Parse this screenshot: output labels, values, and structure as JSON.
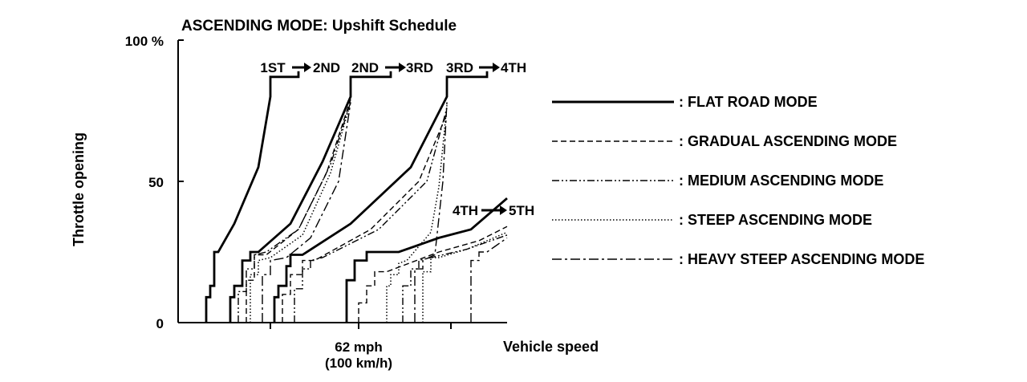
{
  "chart_data": {
    "type": "line",
    "title": "ASCENDING MODE: Upshift Schedule",
    "xlabel": "Vehicle speed",
    "ylabel": "Throttle opening",
    "x_unit": "mph",
    "y_unit": "%",
    "xlim": [
      0,
      82
    ],
    "ylim": [
      0,
      100
    ],
    "grid": false,
    "legend_position": "right",
    "y_tick_labels": [
      {
        "value": 100,
        "label": "100 %"
      },
      {
        "value": 50,
        "label": "50"
      },
      {
        "value": 0,
        "label": "0"
      }
    ],
    "x_tick_values": [
      23,
      45,
      68
    ],
    "x_tick_labels": [
      {
        "value": 45,
        "line1": "62 mph",
        "line2": "(100 km/h)"
      }
    ],
    "shift_labels": [
      {
        "from": "1ST",
        "to": "2ND"
      },
      {
        "from": "2ND",
        "to": "3RD"
      },
      {
        "from": "3RD",
        "to": "4TH"
      },
      {
        "from": "4TH",
        "to": "5TH"
      }
    ],
    "legend": [
      {
        "style": "solid",
        "label": ": FLAT ROAD MODE"
      },
      {
        "style": "dashed",
        "label": ": GRADUAL ASCENDING MODE"
      },
      {
        "style": "dash-dot-dot",
        "label": ": MEDIUM ASCENDING MODE"
      },
      {
        "style": "dotted",
        "label": ": STEEP ASCENDING MODE"
      },
      {
        "style": "dash-dot",
        "label": ": HEAVY STEEP ASCENDING MODE"
      }
    ],
    "series": [
      {
        "style": "solid",
        "shift": "1-2",
        "points": [
          [
            7,
            0
          ],
          [
            7,
            9
          ],
          [
            8,
            9
          ],
          [
            8,
            13
          ],
          [
            9,
            13
          ],
          [
            9,
            25
          ],
          [
            10,
            25
          ],
          [
            14,
            35
          ],
          [
            20,
            55
          ],
          [
            23,
            80
          ],
          [
            23,
            87
          ],
          [
            30,
            87
          ],
          [
            30,
            89
          ]
        ]
      },
      {
        "style": "solid",
        "shift": "2-3",
        "points": [
          [
            13,
            0
          ],
          [
            13,
            9
          ],
          [
            14,
            9
          ],
          [
            14,
            13
          ],
          [
            16,
            13
          ],
          [
            16,
            22
          ],
          [
            18,
            22
          ],
          [
            18,
            25
          ],
          [
            20,
            25
          ],
          [
            28,
            35
          ],
          [
            36,
            57
          ],
          [
            43,
            80
          ],
          [
            43,
            87
          ],
          [
            53,
            87
          ],
          [
            53,
            89
          ]
        ]
      },
      {
        "style": "solid",
        "shift": "3-4",
        "points": [
          [
            24,
            0
          ],
          [
            24,
            9
          ],
          [
            25,
            9
          ],
          [
            25,
            13
          ],
          [
            27,
            13
          ],
          [
            27,
            20
          ],
          [
            28,
            20
          ],
          [
            28,
            24
          ],
          [
            31,
            24
          ],
          [
            43,
            35
          ],
          [
            58,
            55
          ],
          [
            67,
            80
          ],
          [
            67,
            87
          ],
          [
            77,
            87
          ],
          [
            77,
            89
          ]
        ]
      },
      {
        "style": "solid",
        "shift": "4-5",
        "points": [
          [
            42,
            0
          ],
          [
            42,
            15
          ],
          [
            44,
            15
          ],
          [
            44,
            22
          ],
          [
            47,
            22
          ],
          [
            47,
            25
          ],
          [
            55,
            25
          ],
          [
            65,
            30
          ],
          [
            73,
            33
          ],
          [
            82,
            44
          ]
        ]
      },
      {
        "style": "dashed",
        "shift": "2-3",
        "points": [
          [
            17,
            0
          ],
          [
            17,
            15
          ],
          [
            19,
            15
          ],
          [
            19,
            24
          ],
          [
            22,
            24
          ],
          [
            30,
            33
          ],
          [
            37,
            53
          ],
          [
            43,
            79
          ]
        ]
      },
      {
        "style": "dashed",
        "shift": "3-4",
        "points": [
          [
            26,
            0
          ],
          [
            26,
            10
          ],
          [
            28,
            10
          ],
          [
            28,
            17
          ],
          [
            31,
            17
          ],
          [
            31,
            22
          ],
          [
            34,
            22
          ],
          [
            48,
            33
          ],
          [
            60,
            50
          ],
          [
            67,
            74
          ]
        ]
      },
      {
        "style": "dashed",
        "shift": "4-5",
        "points": [
          [
            45,
            0
          ],
          [
            45,
            7
          ],
          [
            47,
            7
          ],
          [
            47,
            13
          ],
          [
            49,
            13
          ],
          [
            49,
            18
          ],
          [
            52,
            18
          ],
          [
            65,
            25
          ],
          [
            75,
            29
          ],
          [
            82,
            34
          ]
        ]
      },
      {
        "style": "dash-dot-dot",
        "shift": "2-3",
        "points": [
          [
            15,
            0
          ],
          [
            15,
            11
          ],
          [
            17,
            11
          ],
          [
            17,
            19
          ],
          [
            19,
            19
          ],
          [
            19,
            24
          ],
          [
            22,
            25
          ],
          [
            30,
            33
          ],
          [
            38,
            56
          ],
          [
            43,
            78
          ]
        ]
      },
      {
        "style": "dash-dot-dot",
        "shift": "3-4",
        "points": [
          [
            29,
            0
          ],
          [
            29,
            12
          ],
          [
            31,
            12
          ],
          [
            31,
            19
          ],
          [
            33,
            19
          ],
          [
            33,
            22
          ],
          [
            36,
            23
          ],
          [
            50,
            33
          ],
          [
            62,
            50
          ],
          [
            67,
            76
          ]
        ]
      },
      {
        "style": "dash-dot-dot",
        "shift": "4-5",
        "points": [
          [
            56,
            0
          ],
          [
            56,
            13
          ],
          [
            58,
            13
          ],
          [
            58,
            19
          ],
          [
            60,
            19
          ],
          [
            60,
            22
          ],
          [
            63,
            23
          ],
          [
            72,
            26
          ],
          [
            82,
            31
          ]
        ]
      },
      {
        "style": "dotted",
        "shift": "2-3",
        "points": [
          [
            18,
            0
          ],
          [
            18,
            17
          ],
          [
            20,
            17
          ],
          [
            20,
            22
          ],
          [
            23,
            23
          ],
          [
            31,
            31
          ],
          [
            38,
            53
          ],
          [
            43,
            78
          ]
        ]
      },
      {
        "style": "dotted",
        "shift": "3-4",
        "points": [
          [
            52,
            0
          ],
          [
            52,
            13
          ],
          [
            53,
            13
          ],
          [
            53,
            17
          ],
          [
            55,
            17
          ],
          [
            55,
            21
          ],
          [
            57,
            22
          ],
          [
            63,
            32
          ],
          [
            65,
            48
          ],
          [
            67,
            77
          ]
        ]
      },
      {
        "style": "dotted",
        "shift": "4-5",
        "points": [
          [
            61,
            0
          ],
          [
            61,
            18
          ],
          [
            63,
            18
          ],
          [
            63,
            23
          ],
          [
            65,
            23
          ],
          [
            72,
            26
          ],
          [
            82,
            32
          ]
        ]
      },
      {
        "style": "dash-dot",
        "shift": "2-3",
        "points": [
          [
            21,
            0
          ],
          [
            21,
            17
          ],
          [
            23,
            17
          ],
          [
            23,
            22
          ],
          [
            27,
            23
          ],
          [
            33,
            30
          ],
          [
            40,
            50
          ],
          [
            43,
            78
          ]
        ]
      },
      {
        "style": "dash-dot",
        "shift": "3-4",
        "points": [
          [
            59,
            0
          ],
          [
            59,
            19
          ],
          [
            61,
            19
          ],
          [
            61,
            22
          ],
          [
            64,
            24
          ],
          [
            66,
            50
          ],
          [
            67,
            78
          ]
        ]
      },
      {
        "style": "dash-dot",
        "shift": "4-5",
        "points": [
          [
            73,
            0
          ],
          [
            73,
            22
          ],
          [
            75,
            22
          ],
          [
            75,
            25
          ],
          [
            77,
            25
          ],
          [
            79,
            27
          ],
          [
            82,
            30
          ]
        ]
      }
    ]
  }
}
